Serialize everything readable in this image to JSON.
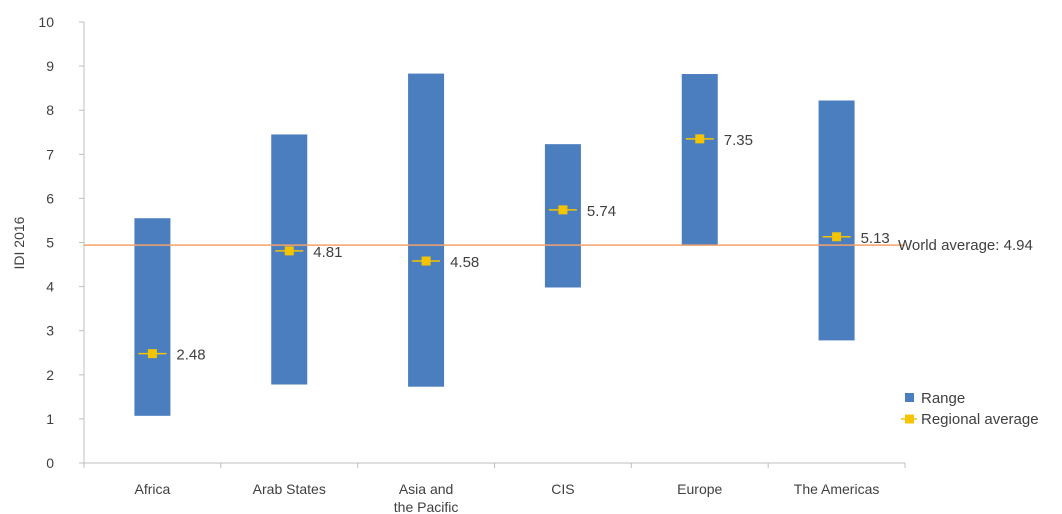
{
  "chart_data": {
    "type": "range",
    "title": "",
    "xlabel": "",
    "ylabel": "IDI 2016",
    "ylim": [
      0,
      10
    ],
    "yticks": [
      0,
      1,
      2,
      3,
      4,
      5,
      6,
      7,
      8,
      9,
      10
    ],
    "grid": false,
    "legend_position": "right",
    "categories": [
      [
        "Africa"
      ],
      [
        "Arab States"
      ],
      [
        "Asia and",
        "the Pacific"
      ],
      [
        "CIS"
      ],
      [
        "Europe"
      ],
      [
        "The Americas"
      ]
    ],
    "series": [
      {
        "name": "Range",
        "type": "range-bar",
        "color": "#4a7ebf",
        "low": [
          1.07,
          1.78,
          1.73,
          3.98,
          4.93,
          2.78
        ],
        "high": [
          5.55,
          7.45,
          8.83,
          7.23,
          8.82,
          8.22
        ]
      },
      {
        "name": "Regional average",
        "type": "marker",
        "color": "#f5c400",
        "values": [
          2.48,
          4.81,
          4.58,
          5.74,
          7.35,
          5.13
        ],
        "labels": [
          "2.48",
          "4.81",
          "4.58",
          "5.74",
          "7.35",
          "5.13"
        ]
      }
    ],
    "reference_line": {
      "value": 4.94,
      "label": "World average: 4.94",
      "color": "#f4a26b"
    }
  }
}
